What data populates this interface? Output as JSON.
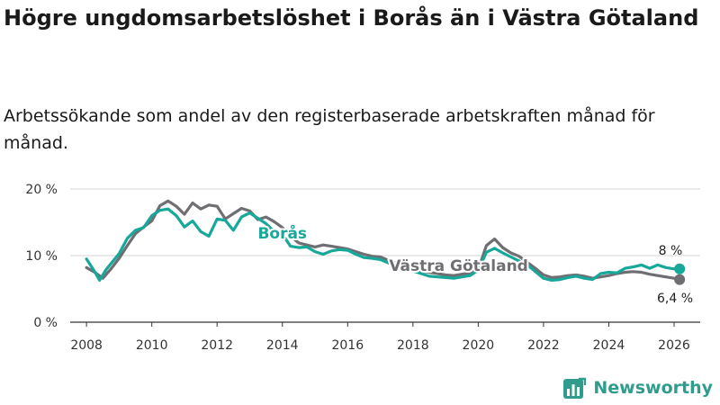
{
  "title": "Högre ungdomsarbetslöshet i Borås än i Västra Götaland",
  "subtitle": "Arbetssökande som andel av den registerbaserade arbetskraften månad för månad.",
  "brand": "Newsworthy",
  "colors": {
    "boras": "#17a89a",
    "vg": "#6f6f73",
    "grid": "#d4d4d4",
    "brand": "#2f9c8e"
  },
  "chart_data": {
    "type": "line",
    "title": "Högre ungdomsarbetslöshet i Borås än i Västra Götaland",
    "subtitle": "Arbetssökande som andel av den registerbaserade arbetskraften månad för månad.",
    "xlabel": "",
    "ylabel": "",
    "xlim": [
      2007.5,
      2026.8
    ],
    "ylim": [
      0,
      20
    ],
    "x_ticks": [
      2008,
      2010,
      2012,
      2014,
      2016,
      2018,
      2020,
      2022,
      2024,
      2026
    ],
    "y_ticks": [
      {
        "value": 0,
        "label": "0 %"
      },
      {
        "value": 10,
        "label": "10 %"
      },
      {
        "value": 20,
        "label": "20 %"
      }
    ],
    "grid": true,
    "series": [
      {
        "name": "Västra Götaland",
        "label": "Västra Götaland",
        "end_label": "6,4 %",
        "points": [
          [
            2008.0,
            8.2
          ],
          [
            2008.25,
            7.5
          ],
          [
            2008.5,
            6.6
          ],
          [
            2008.75,
            8.0
          ],
          [
            2009.0,
            9.6
          ],
          [
            2009.25,
            11.5
          ],
          [
            2009.5,
            13.3
          ],
          [
            2009.75,
            14.3
          ],
          [
            2010.0,
            15.2
          ],
          [
            2010.25,
            17.5
          ],
          [
            2010.5,
            18.2
          ],
          [
            2010.75,
            17.4
          ],
          [
            2011.0,
            16.2
          ],
          [
            2011.25,
            17.9
          ],
          [
            2011.5,
            17.0
          ],
          [
            2011.75,
            17.6
          ],
          [
            2012.0,
            17.4
          ],
          [
            2012.25,
            15.5
          ],
          [
            2012.5,
            16.3
          ],
          [
            2012.75,
            17.1
          ],
          [
            2013.0,
            16.7
          ],
          [
            2013.25,
            15.4
          ],
          [
            2013.5,
            15.8
          ],
          [
            2013.75,
            15.1
          ],
          [
            2014.0,
            14.2
          ],
          [
            2014.25,
            12.9
          ],
          [
            2014.5,
            11.9
          ],
          [
            2014.75,
            11.6
          ],
          [
            2015.0,
            11.3
          ],
          [
            2015.25,
            11.6
          ],
          [
            2015.5,
            11.4
          ],
          [
            2015.75,
            11.2
          ],
          [
            2016.0,
            11.0
          ],
          [
            2016.25,
            10.6
          ],
          [
            2016.5,
            10.2
          ],
          [
            2016.75,
            9.9
          ],
          [
            2017.0,
            9.8
          ],
          [
            2017.25,
            9.3
          ],
          [
            2017.5,
            8.8
          ],
          [
            2017.75,
            8.4
          ],
          [
            2018.0,
            8.0
          ],
          [
            2018.25,
            7.7
          ],
          [
            2018.5,
            7.5
          ],
          [
            2018.75,
            7.3
          ],
          [
            2019.0,
            7.1
          ],
          [
            2019.25,
            7.0
          ],
          [
            2019.5,
            7.2
          ],
          [
            2019.75,
            7.4
          ],
          [
            2020.0,
            7.9
          ],
          [
            2020.25,
            11.5
          ],
          [
            2020.5,
            12.5
          ],
          [
            2020.75,
            11.2
          ],
          [
            2021.0,
            10.4
          ],
          [
            2021.25,
            9.9
          ],
          [
            2021.5,
            9.0
          ],
          [
            2021.75,
            8.1
          ],
          [
            2022.0,
            7.1
          ],
          [
            2022.25,
            6.7
          ],
          [
            2022.5,
            6.8
          ],
          [
            2022.75,
            7.0
          ],
          [
            2023.0,
            7.1
          ],
          [
            2023.25,
            6.9
          ],
          [
            2023.5,
            6.6
          ],
          [
            2023.75,
            6.8
          ],
          [
            2024.0,
            7.0
          ],
          [
            2024.25,
            7.3
          ],
          [
            2024.5,
            7.5
          ],
          [
            2024.75,
            7.6
          ],
          [
            2025.0,
            7.5
          ],
          [
            2025.25,
            7.2
          ],
          [
            2025.5,
            7.0
          ],
          [
            2025.75,
            6.8
          ],
          [
            2026.0,
            6.6
          ],
          [
            2026.17,
            6.4
          ]
        ]
      },
      {
        "name": "Borås",
        "label": "Borås",
        "end_label": "8 %",
        "points": [
          [
            2008.0,
            9.5
          ],
          [
            2008.25,
            7.6
          ],
          [
            2008.4,
            6.3
          ],
          [
            2008.6,
            7.9
          ],
          [
            2009.0,
            10.3
          ],
          [
            2009.25,
            12.6
          ],
          [
            2009.5,
            13.8
          ],
          [
            2009.75,
            14.2
          ],
          [
            2010.0,
            16.0
          ],
          [
            2010.25,
            16.8
          ],
          [
            2010.5,
            17.0
          ],
          [
            2010.75,
            16.0
          ],
          [
            2011.0,
            14.3
          ],
          [
            2011.25,
            15.2
          ],
          [
            2011.5,
            13.6
          ],
          [
            2011.75,
            12.9
          ],
          [
            2012.0,
            15.5
          ],
          [
            2012.25,
            15.3
          ],
          [
            2012.5,
            13.8
          ],
          [
            2012.75,
            15.8
          ],
          [
            2013.0,
            16.4
          ],
          [
            2013.25,
            15.6
          ],
          [
            2013.5,
            14.8
          ],
          [
            2013.75,
            13.6
          ],
          [
            2014.0,
            13.2
          ],
          [
            2014.25,
            11.4
          ],
          [
            2014.5,
            11.2
          ],
          [
            2014.75,
            11.3
          ],
          [
            2015.0,
            10.6
          ],
          [
            2015.25,
            10.2
          ],
          [
            2015.5,
            10.7
          ],
          [
            2015.75,
            10.9
          ],
          [
            2016.0,
            10.8
          ],
          [
            2016.25,
            10.2
          ],
          [
            2016.5,
            9.7
          ],
          [
            2016.75,
            9.6
          ],
          [
            2017.0,
            9.4
          ],
          [
            2017.25,
            8.9
          ],
          [
            2017.5,
            8.3
          ],
          [
            2017.75,
            8.0
          ],
          [
            2018.0,
            7.7
          ],
          [
            2018.25,
            7.3
          ],
          [
            2018.5,
            6.9
          ],
          [
            2018.75,
            6.8
          ],
          [
            2019.0,
            6.7
          ],
          [
            2019.25,
            6.6
          ],
          [
            2019.5,
            6.8
          ],
          [
            2019.75,
            7.0
          ],
          [
            2020.0,
            7.8
          ],
          [
            2020.25,
            10.5
          ],
          [
            2020.5,
            11.1
          ],
          [
            2020.75,
            10.4
          ],
          [
            2021.0,
            9.8
          ],
          [
            2021.25,
            9.2
          ],
          [
            2021.5,
            8.6
          ],
          [
            2021.75,
            7.6
          ],
          [
            2022.0,
            6.6
          ],
          [
            2022.25,
            6.3
          ],
          [
            2022.5,
            6.4
          ],
          [
            2022.75,
            6.7
          ],
          [
            2023.0,
            6.9
          ],
          [
            2023.25,
            6.6
          ],
          [
            2023.5,
            6.4
          ],
          [
            2023.75,
            7.3
          ],
          [
            2024.0,
            7.5
          ],
          [
            2024.25,
            7.4
          ],
          [
            2024.5,
            8.1
          ],
          [
            2024.75,
            8.3
          ],
          [
            2025.0,
            8.6
          ],
          [
            2025.25,
            8.1
          ],
          [
            2025.5,
            8.6
          ],
          [
            2025.75,
            8.2
          ],
          [
            2026.0,
            8.0
          ],
          [
            2026.17,
            8.0
          ]
        ]
      }
    ]
  }
}
